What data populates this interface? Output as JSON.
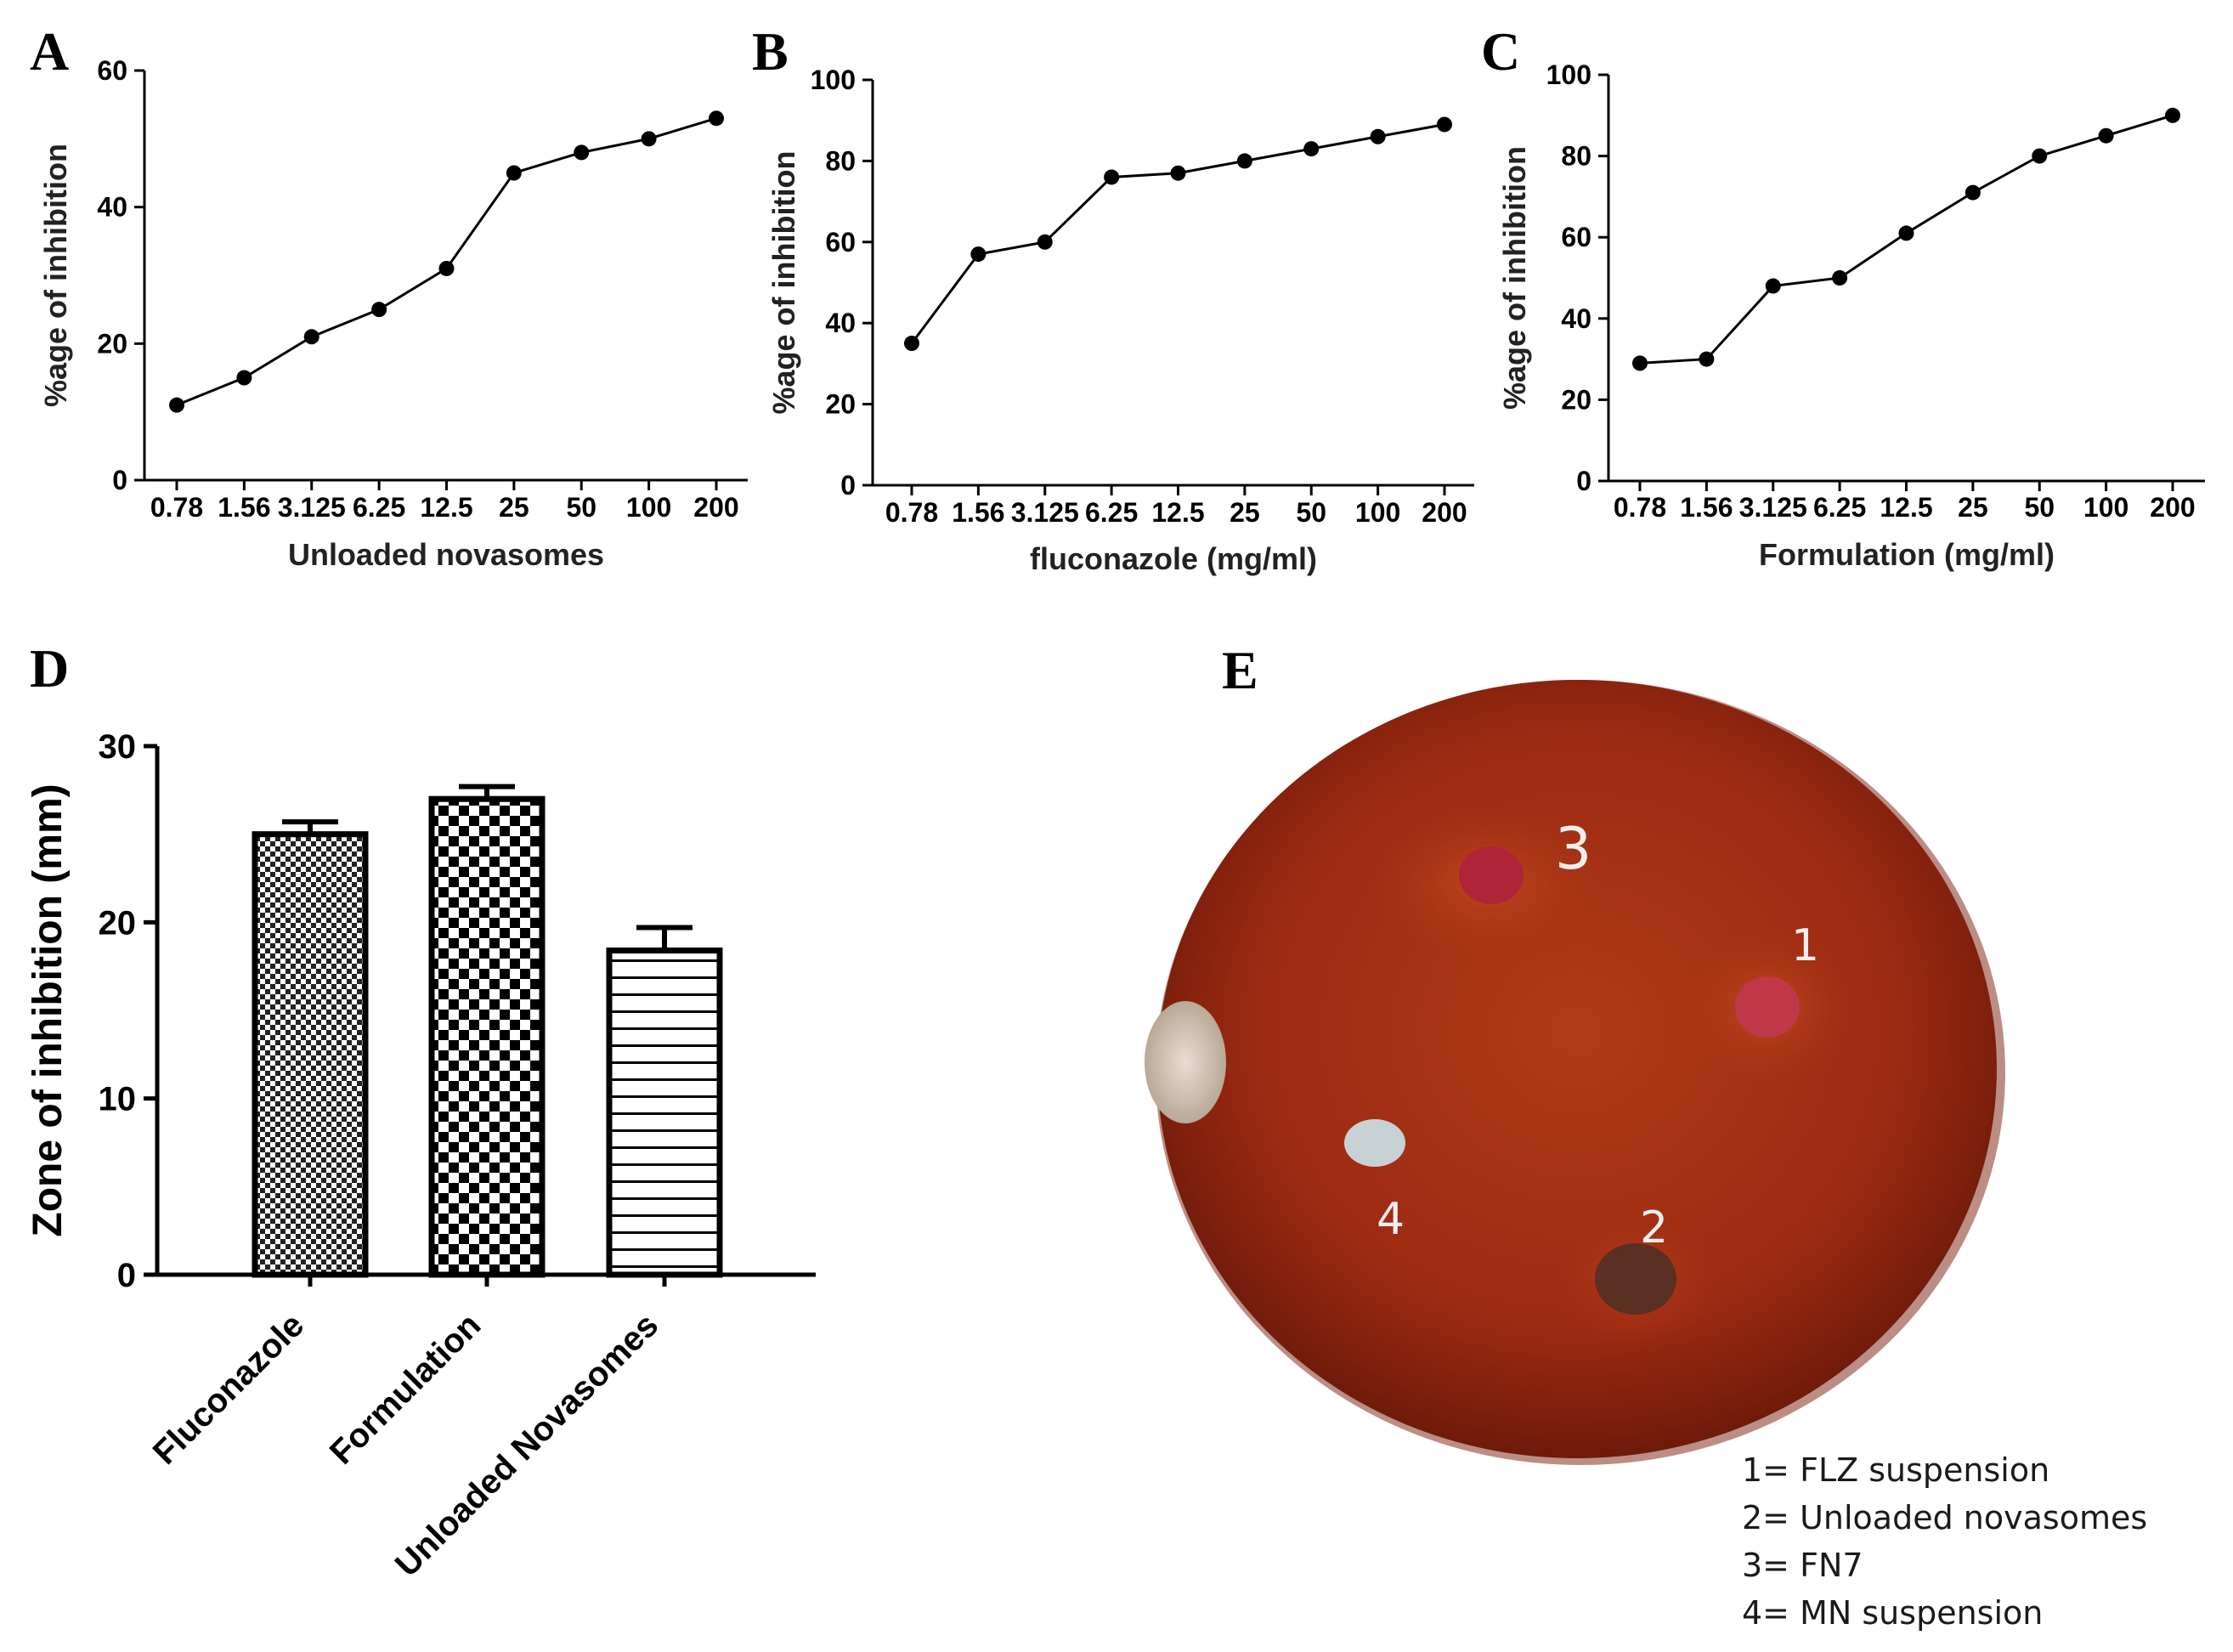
{
  "chart_data": [
    {
      "panel": "A",
      "type": "line",
      "categories": [
        "0.78",
        "1.56",
        "3.125",
        "6.25",
        "12.5",
        "25",
        "50",
        "100",
        "200"
      ],
      "values": [
        11,
        15,
        21,
        25,
        31,
        45,
        48,
        50,
        53
      ],
      "ylabel": "%age of inhibition",
      "xlabel": "Unloaded novasomes",
      "ylim": [
        0,
        60
      ],
      "yticks": [
        0,
        20,
        40,
        60
      ]
    },
    {
      "panel": "B",
      "type": "line",
      "categories": [
        "0.78",
        "1.56",
        "3.125",
        "6.25",
        "12.5",
        "25",
        "50",
        "100",
        "200"
      ],
      "values": [
        35,
        57,
        60,
        76,
        77,
        80,
        83,
        86,
        89
      ],
      "ylabel": "%age of inhibition",
      "xlabel": "fluconazole (mg/ml)",
      "ylim": [
        0,
        100
      ],
      "yticks": [
        0,
        20,
        40,
        60,
        80,
        100
      ]
    },
    {
      "panel": "C",
      "type": "line",
      "categories": [
        "0.78",
        "1.56",
        "3.125",
        "6.25",
        "12.5",
        "25",
        "50",
        "100",
        "200"
      ],
      "values": [
        29,
        30,
        48,
        50,
        61,
        71,
        80,
        85,
        90
      ],
      "ylabel": "%age of inhibition",
      "xlabel": "Formulation (mg/ml)",
      "ylim": [
        0,
        100
      ],
      "yticks": [
        0,
        20,
        40,
        60,
        80,
        100
      ]
    },
    {
      "panel": "D",
      "type": "bar",
      "categories": [
        "Fluconazole",
        "Formulation",
        "Unloaded Novasomes"
      ],
      "values": [
        25,
        27,
        18.4
      ],
      "errors": [
        0.7,
        0.7,
        1.3
      ],
      "patterns": [
        "fine-check",
        "checker",
        "hlines"
      ],
      "ylabel": "Zone of inhibition (mm)",
      "ylim": [
        0,
        30
      ],
      "yticks": [
        0,
        10,
        20,
        30
      ]
    }
  ],
  "photo": {
    "panel": "E",
    "description": "agar plate with four wells",
    "wells": [
      {
        "label": "1",
        "color": "#c03848"
      },
      {
        "label": "2",
        "color": "#5a3022"
      },
      {
        "label": "3",
        "color": "#b02438"
      },
      {
        "label": "4",
        "color": "#c8d2d4"
      }
    ],
    "legend": [
      "1= FLZ suspension",
      "2= Unloaded novasomes",
      "3= FN7",
      "4= MN suspension"
    ]
  }
}
